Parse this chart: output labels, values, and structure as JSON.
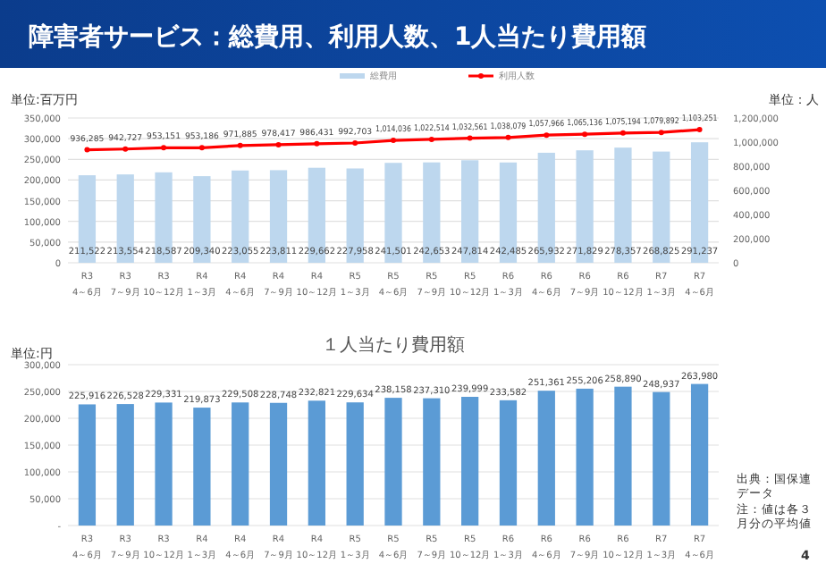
{
  "chart_data": [
    {
      "type": "bar",
      "title": "障害者サービス：総費用、利用人数、1人当たり費用額",
      "ylabel": "単位:百万円",
      "y2label": "単位：人",
      "categories": [
        "R3\n4～6月",
        "R3\n7～9月",
        "R3\n10～12月",
        "R4\n1～3月",
        "R4\n4～6月",
        "R4\n7～9月",
        "R4\n10～12月",
        "R5\n1～3月",
        "R5\n4～6月",
        "R5\n7～9月",
        "R5\n10～12月",
        "R6\n1～3月",
        "R6\n4～6月",
        "R6\n7～9月",
        "R6\n10～12月",
        "R7\n1～3月",
        "R7\n4～6月"
      ],
      "series": [
        {
          "name": "総費用",
          "type": "bar",
          "color": "#bdd7ee",
          "values": [
            211522,
            213554,
            218587,
            209340,
            223055,
            223811,
            229662,
            227958,
            241501,
            242653,
            247814,
            242485,
            265932,
            271829,
            278357,
            268825,
            291237
          ],
          "value_labels": [
            "211,522",
            "213,554",
            "218,587",
            "209,340",
            "223,055",
            "223,811",
            "229,662",
            "227,958",
            "241,501",
            "242,653",
            "247,814",
            "242,485",
            "265,932",
            "271,829",
            "278,357",
            "268,825",
            "291,237"
          ]
        },
        {
          "name": "利用人数",
          "type": "line",
          "axis": "y2",
          "color": "#ff0000",
          "values": [
            936285,
            942727,
            953151,
            953186,
            971885,
            978417,
            986431,
            992703,
            1014036,
            1022514,
            1032561,
            1038079,
            1057966,
            1065136,
            1075194,
            1079892,
            1103251
          ],
          "value_labels": [
            "936,285",
            "942,727",
            "953,151",
            "953,186",
            "971,885",
            "978,417",
            "986,431",
            "992,703",
            "1,014,036",
            "1,022,514",
            "1,032,561",
            "1,038,079",
            "1,057,966",
            "1,065,136",
            "1,075,194",
            "1,079,892",
            "1,103,251"
          ]
        }
      ],
      "ylim": [
        0,
        350000
      ],
      "yticks": [
        {
          "value": 0,
          "label": "0"
        },
        {
          "value": 50000,
          "label": "50,000"
        },
        {
          "value": 100000,
          "label": "100,000"
        },
        {
          "value": 150000,
          "label": "150,000"
        },
        {
          "value": 200000,
          "label": "200,000"
        },
        {
          "value": 250000,
          "label": "250,000"
        },
        {
          "value": 300000,
          "label": "300,000"
        },
        {
          "value": 350000,
          "label": "350,000"
        }
      ],
      "y2lim": [
        0,
        1200000
      ],
      "y2ticks": [
        {
          "value": 0,
          "label": "0"
        },
        {
          "value": 200000,
          "label": "200,000"
        },
        {
          "value": 400000,
          "label": "400,000"
        },
        {
          "value": 600000,
          "label": "600,000"
        },
        {
          "value": 800000,
          "label": "800,000"
        },
        {
          "value": 1000000,
          "label": "1,000,000"
        },
        {
          "value": 1200000,
          "label": "1,200,000"
        }
      ],
      "grid": "y",
      "legend": "top",
      "marker": "circle"
    },
    {
      "type": "bar",
      "title": "１人当たり費用額",
      "ylabel": "単位:円",
      "categories": [
        "R3\n4～6月",
        "R3\n7～9月",
        "R3\n10～12月",
        "R4\n1～3月",
        "R4\n4～6月",
        "R4\n7～9月",
        "R4\n10～12月",
        "R5\n1～3月",
        "R5\n4～6月",
        "R5\n7～9月",
        "R5\n10～12月",
        "R6\n1～3月",
        "R6\n4～6月",
        "R6\n7～9月",
        "R6\n10～12月",
        "R7\n1～3月",
        "R7\n4～6月"
      ],
      "color": "#5b9bd5",
      "values": [
        225916,
        226528,
        229331,
        219873,
        229508,
        228748,
        232821,
        229634,
        238158,
        237310,
        239999,
        233582,
        251361,
        255206,
        258890,
        248937,
        263980
      ],
      "value_labels": [
        "225,916",
        "226,528",
        "229,331",
        "219,873",
        "229,508",
        "228,748",
        "232,821",
        "229,634",
        "238,158",
        "237,310",
        "239,999",
        "233,582",
        "251,361",
        "255,206",
        "258,890",
        "248,937",
        "263,980"
      ],
      "ylim": [
        0,
        300000
      ],
      "yticks": [
        {
          "value": 0,
          "label": "-"
        },
        {
          "value": 50000,
          "label": "50,000"
        },
        {
          "value": 100000,
          "label": "100,000"
        },
        {
          "value": 150000,
          "label": "150,000"
        },
        {
          "value": 200000,
          "label": "200,000"
        },
        {
          "value": 250000,
          "label": "250,000"
        },
        {
          "value": 300000,
          "label": "300,000"
        }
      ],
      "grid": "y",
      "annotations": [
        "出典：国保連データ",
        "注：値は各３月分の平均値",
        "4"
      ]
    }
  ]
}
